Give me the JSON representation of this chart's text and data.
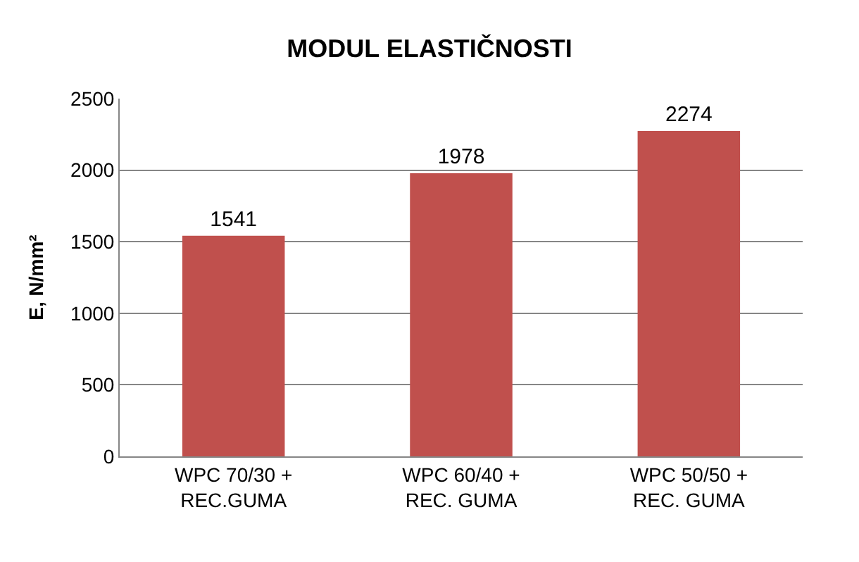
{
  "chart_data": {
    "type": "bar",
    "title": "MODUL ELASTIČNOSTI",
    "ylabel": "E, N/mm²",
    "categories": [
      "WPC 70/30 +\nREC.GUMA",
      "WPC 60/40 +\nREC. GUMA",
      "WPC 50/50 +\nREC. GUMA"
    ],
    "values": [
      1541,
      1978,
      2274
    ],
    "color": "#c0504d",
    "ylim": [
      0,
      2500
    ],
    "yticks": [
      0,
      500,
      1000,
      1500,
      2000,
      2500
    ],
    "grid": "y",
    "data_labels": true
  }
}
